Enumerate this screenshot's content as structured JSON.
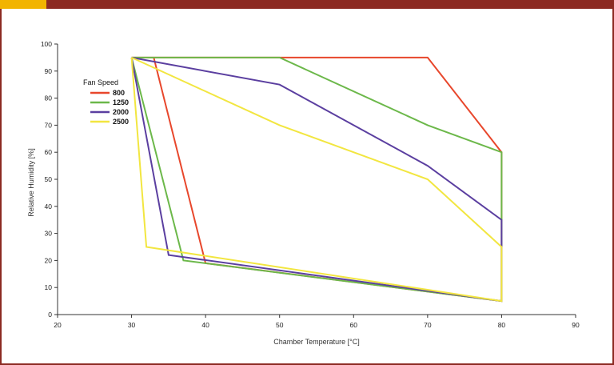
{
  "colors": {
    "frame": "#8c2a22",
    "badge": "#f2b400"
  },
  "chart_data": {
    "type": "line",
    "title": "",
    "xlabel": "Chamber Temperature [°C]",
    "ylabel": "Relative Humidity [%]",
    "xlim": [
      20,
      90
    ],
    "ylim": [
      0,
      100
    ],
    "x_ticks": [
      20,
      30,
      40,
      50,
      60,
      70,
      80,
      90
    ],
    "y_ticks": [
      0,
      10,
      20,
      30,
      40,
      50,
      60,
      70,
      80,
      90,
      100
    ],
    "grid": false,
    "legend": {
      "title": "Fan Speed",
      "placement": "top-left"
    },
    "series": [
      {
        "name": "800",
        "color": "#e8472c",
        "points": [
          [
            30,
            95
          ],
          [
            70,
            95
          ],
          [
            80,
            60
          ],
          [
            80,
            5
          ],
          [
            40,
            19
          ],
          [
            33,
            95
          ],
          [
            30,
            95
          ]
        ]
      },
      {
        "name": "1250",
        "color": "#6cb84a",
        "points": [
          [
            30,
            95
          ],
          [
            50,
            95
          ],
          [
            70,
            70
          ],
          [
            80,
            60
          ],
          [
            80,
            5
          ],
          [
            37,
            20
          ],
          [
            30,
            95
          ]
        ]
      },
      {
        "name": "2000",
        "color": "#5b3fa0",
        "points": [
          [
            30,
            95
          ],
          [
            50,
            85
          ],
          [
            70,
            55
          ],
          [
            80,
            35
          ],
          [
            80,
            5
          ],
          [
            35,
            22
          ],
          [
            30,
            95
          ]
        ]
      },
      {
        "name": "2500",
        "color": "#f2e640",
        "points": [
          [
            30,
            95
          ],
          [
            50,
            70
          ],
          [
            70,
            50
          ],
          [
            80,
            25
          ],
          [
            80,
            5
          ],
          [
            32,
            25
          ],
          [
            30,
            95
          ]
        ]
      }
    ]
  }
}
